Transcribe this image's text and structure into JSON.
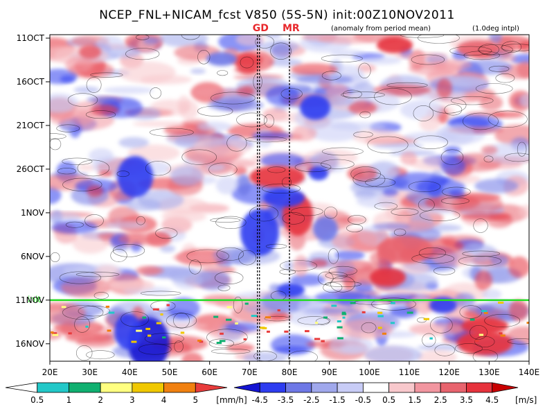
{
  "title": "NCEP_FNL+NICAM_fcst V850 (5S-5N) init:00Z10NOV2011",
  "note_anomaly": "(anomaly from period mean)",
  "note_interp": "(1.0deg intpl)",
  "markers": [
    {
      "label": "GD",
      "lon": 72.5
    },
    {
      "label": "MR",
      "lon": 80
    }
  ],
  "init_label": "init",
  "chart_data": {
    "type": "heatmap",
    "title": "NCEP_FNL+NICAM_fcst V850 (5S-5N) init:00Z10NOV2011",
    "x_ticks": [
      "20E",
      "30E",
      "40E",
      "50E",
      "60E",
      "70E",
      "80E",
      "90E",
      "100E",
      "110E",
      "120E",
      "130E",
      "140E"
    ],
    "x_range": [
      20,
      140
    ],
    "y_ticks": [
      "11OCT",
      "16OCT",
      "21OCT",
      "26OCT",
      "1NOV",
      "6NOV",
      "11NOV",
      "16NOV"
    ],
    "y_range_days": [
      0,
      37
    ],
    "init_day": 30,
    "colors": {
      "init_line": "#22dd22",
      "marker_line": "#000000"
    },
    "precip_colorbar": {
      "unit": "[mm/h]",
      "ticks": [
        "0.5",
        "1",
        "2",
        "3",
        "4",
        "5"
      ],
      "colors": [
        "#ffffff",
        "#22c8c8",
        "#10b070",
        "#ffff80",
        "#f0c800",
        "#f08010",
        "#e83c3c"
      ]
    },
    "wind_colorbar": {
      "unit": "[m/s]",
      "ticks": [
        "-4.5",
        "-3.5",
        "-2.5",
        "-1.5",
        "-0.5",
        "0.5",
        "1.5",
        "2.5",
        "3.5",
        "4.5"
      ],
      "colors": [
        "#1414d2",
        "#2d3cf0",
        "#6e78e6",
        "#a0a8ec",
        "#c8ccf6",
        "#ffffff",
        "#f8c8cc",
        "#f296a0",
        "#e8646e",
        "#e6323c",
        "#c80000"
      ]
    }
  }
}
